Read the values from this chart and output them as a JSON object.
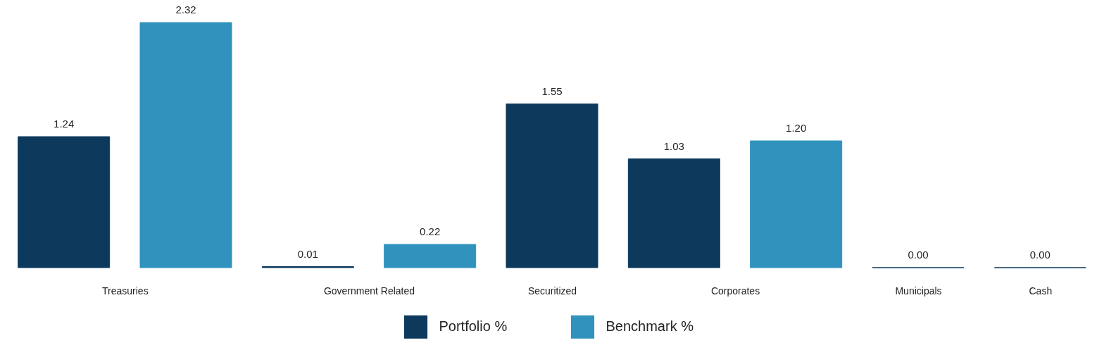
{
  "chart_data": {
    "type": "bar",
    "categories": [
      "Treasuries",
      "Government Related",
      "Securitized",
      "Corporates",
      "Municipals",
      "Cash"
    ],
    "series": [
      {
        "name": "Portfolio %",
        "color": "#0d395d",
        "values": [
          1.24,
          0.01,
          1.55,
          1.03,
          0.0,
          0.0
        ],
        "value_labels": [
          "1.24",
          "0.01",
          "1.55",
          "1.03",
          "0.00",
          "0.00"
        ]
      },
      {
        "name": "Benchmark %",
        "color": "#3193bd",
        "values": [
          2.32,
          0.22,
          null,
          1.2,
          null,
          null
        ],
        "value_labels": [
          "2.32",
          "0.22",
          null,
          "1.20",
          null,
          null
        ]
      }
    ],
    "legend": "bottom",
    "tick_labels": "x"
  }
}
